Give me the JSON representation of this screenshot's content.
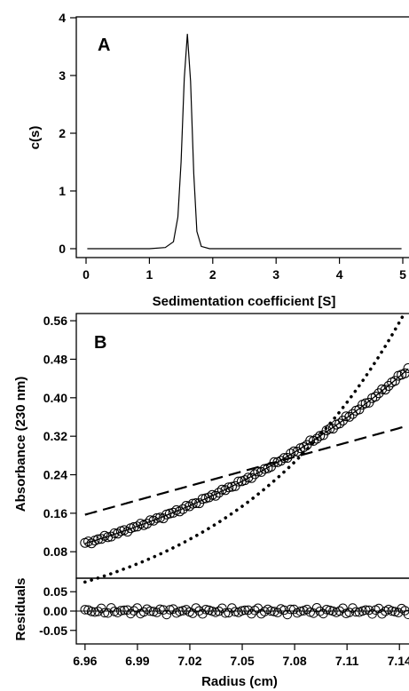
{
  "chart_data": [
    {
      "type": "line",
      "panel_label": "A",
      "xlabel": "Sedimentation coefficient [S]",
      "ylabel": "c(s)",
      "xlim": [
        0,
        5
      ],
      "ylim": [
        0,
        4
      ],
      "x_ticks": [
        "0",
        "1",
        "2",
        "3",
        "4",
        "5"
      ],
      "y_ticks": [
        "0",
        "1",
        "2",
        "3",
        "4"
      ],
      "series": [
        {
          "x": [
            0.02,
            0.5,
            1.0,
            1.25,
            1.38,
            1.45,
            1.5,
            1.55,
            1.6,
            1.65,
            1.7,
            1.75,
            1.82,
            1.95,
            2.5,
            3.5,
            4.98
          ],
          "y": [
            0.0,
            0.0,
            0.0,
            0.02,
            0.12,
            0.55,
            1.5,
            2.95,
            3.72,
            2.9,
            1.3,
            0.3,
            0.04,
            0.0,
            0.0,
            0.0,
            0.0
          ]
        }
      ]
    },
    {
      "type": "scatter",
      "panel_label": "B",
      "ylabel": "Absorbance (230 nm)",
      "xlim": [
        6.955,
        7.147
      ],
      "ylim": [
        0.025,
        0.575
      ],
      "y_ticks": [
        "0.08",
        "0.16",
        "0.24",
        "0.32",
        "0.40",
        "0.48",
        "0.56"
      ],
      "series": [
        {
          "style": "circles",
          "x_range": [
            6.96,
            7.145
          ],
          "y_at_start": 0.097,
          "y_at_end": 0.46,
          "curvature": 2.9,
          "count": 100
        },
        {
          "style": "solid",
          "x_range": [
            6.96,
            7.145
          ],
          "y_at_start": 0.097,
          "y_at_end": 0.46,
          "curvature": 2.9
        },
        {
          "style": "dashed",
          "x_range": [
            6.96,
            7.145
          ],
          "y_at_start": 0.157,
          "y_at_end": 0.342,
          "curvature": 1.0
        },
        {
          "style": "dotted",
          "x_range": [
            6.96,
            7.145
          ],
          "y_at_start": 0.017,
          "y_at_end": 0.59,
          "curvature": 6.2
        }
      ]
    },
    {
      "type": "scatter",
      "ylabel": "Residuals",
      "xlabel": "Radius (cm)",
      "xlim": [
        6.955,
        7.147
      ],
      "ylim": [
        -0.085,
        0.085
      ],
      "x_ticks": [
        "6.96",
        "6.99",
        "7.02",
        "7.05",
        "7.08",
        "7.11",
        "7.14"
      ],
      "y_ticks": [
        "0.05",
        "0.00",
        "-0.05"
      ],
      "zero_line": true,
      "series": [
        {
          "style": "circles",
          "x_range": [
            6.96,
            7.145
          ],
          "amplitude": 0.009,
          "count": 100
        }
      ]
    }
  ]
}
